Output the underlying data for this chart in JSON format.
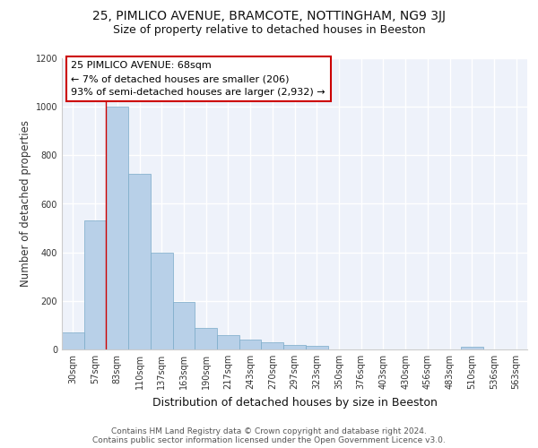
{
  "title_line1": "25, PIMLICO AVENUE, BRAMCOTE, NOTTINGHAM, NG9 3JJ",
  "title_line2": "Size of property relative to detached houses in Beeston",
  "xlabel": "Distribution of detached houses by size in Beeston",
  "ylabel": "Number of detached properties",
  "categories": [
    "30sqm",
    "57sqm",
    "83sqm",
    "110sqm",
    "137sqm",
    "163sqm",
    "190sqm",
    "217sqm",
    "243sqm",
    "270sqm",
    "297sqm",
    "323sqm",
    "350sqm",
    "376sqm",
    "403sqm",
    "430sqm",
    "456sqm",
    "483sqm",
    "510sqm",
    "536sqm",
    "563sqm"
  ],
  "values": [
    70,
    530,
    1000,
    725,
    400,
    195,
    90,
    60,
    40,
    30,
    20,
    15,
    0,
    0,
    0,
    0,
    0,
    0,
    10,
    0,
    0
  ],
  "bar_color": "#b8d0e8",
  "bar_edge_color": "#7aaac8",
  "background_color": "#eef2fa",
  "grid_color": "#ffffff",
  "annotation_text": "25 PIMLICO AVENUE: 68sqm\n← 7% of detached houses are smaller (206)\n93% of semi-detached houses are larger (2,932) →",
  "annotation_facecolor": "#ffffff",
  "annotation_edgecolor": "#cc0000",
  "vline_color": "#cc0000",
  "vline_x": 1.5,
  "ylim": [
    0,
    1200
  ],
  "yticks": [
    0,
    200,
    400,
    600,
    800,
    1000,
    1200
  ],
  "title_fontsize": 10,
  "subtitle_fontsize": 9,
  "xlabel_fontsize": 9,
  "ylabel_fontsize": 8.5,
  "tick_fontsize": 7,
  "annotation_fontsize": 8,
  "footer_fontsize": 6.5,
  "footer_line1": "Contains HM Land Registry data © Crown copyright and database right 2024.",
  "footer_line2": "Contains public sector information licensed under the Open Government Licence v3.0."
}
